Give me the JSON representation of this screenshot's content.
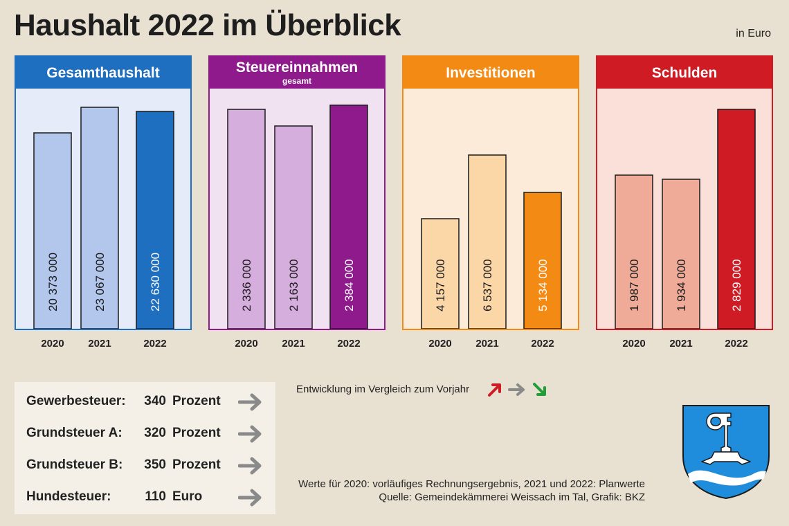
{
  "title": "Haushalt 2022 im Überblick",
  "unit_label": "in Euro",
  "colors": {
    "background": "#e8e0d0",
    "blue": "#1f6fc1",
    "purple": "#8e1a8c",
    "orange": "#f28a14",
    "red": "#cf1b24",
    "arrow_up": "#cf1b24",
    "arrow_same": "#8a8a8a",
    "arrow_down": "#1f9e3a"
  },
  "chart_data": [
    {
      "type": "bar",
      "title": "Gesamthaushalt",
      "subtitle": "",
      "categories": [
        "2020",
        "2021",
        "2022"
      ],
      "values": [
        20373000,
        23067000,
        22630000
      ],
      "value_labels": [
        "20 373 000",
        "23 067 000",
        "22 630 000"
      ],
      "ylim": [
        0,
        25000000
      ],
      "theme": {
        "header": "#1f6fc1",
        "panel_bg": "#e5ebf8",
        "bars": [
          "#b3c6ec",
          "#b3c6ec",
          "#1f6fc1"
        ]
      }
    },
    {
      "type": "bar",
      "title": "Steuereinnahmen",
      "subtitle": "gesamt",
      "categories": [
        "2020",
        "2021",
        "2022"
      ],
      "values": [
        2336000,
        2163000,
        2384000
      ],
      "value_labels": [
        "2 336 000",
        "2 163 000",
        "2 384 000"
      ],
      "ylim": [
        0,
        2560000
      ],
      "theme": {
        "header": "#8e1a8c",
        "panel_bg": "#f1e2f2",
        "bars": [
          "#d6aede",
          "#d6aede",
          "#8e1a8c"
        ]
      }
    },
    {
      "type": "bar",
      "title": "Investitionen",
      "subtitle": "",
      "categories": [
        "2020",
        "2021",
        "2022"
      ],
      "values": [
        4157000,
        6537000,
        5134000
      ],
      "value_labels": [
        "4 157 000",
        "6 537 000",
        "5 134 000"
      ],
      "ylim": [
        0,
        9050000
      ],
      "theme": {
        "header": "#f28a14",
        "panel_bg": "#fcebd8",
        "bars": [
          "#fbd6a6",
          "#fbd6a6",
          "#f28a14"
        ]
      }
    },
    {
      "type": "bar",
      "title": "Schulden",
      "subtitle": "",
      "categories": [
        "2020",
        "2021",
        "2022"
      ],
      "values": [
        1987000,
        1934000,
        2829000
      ],
      "value_labels": [
        "1 987 000",
        "1 934 000",
        "2 829 000"
      ],
      "ylim": [
        0,
        3100000
      ],
      "theme": {
        "header": "#cf1b24",
        "panel_bg": "#fae0d8",
        "bars": [
          "#efab98",
          "#efab98",
          "#cf1b24"
        ]
      }
    }
  ],
  "taxes": [
    {
      "label": "Gewerbesteuer:",
      "value": "340",
      "unit": "Prozent",
      "trend": "same"
    },
    {
      "label": "Grundsteuer A:",
      "value": "320",
      "unit": "Prozent",
      "trend": "same"
    },
    {
      "label": "Grundsteuer B:",
      "value": "350",
      "unit": "Prozent",
      "trend": "same"
    },
    {
      "label": "Hundesteuer:",
      "value": "110",
      "unit": "Euro",
      "trend": "same"
    }
  ],
  "legend": {
    "text": "Entwicklung im Vergleich zum Vorjahr",
    "arrows": [
      "up",
      "same",
      "down"
    ]
  },
  "notes": {
    "line1": "Werte für 2020: vorläufiges Rechnungsergebnis, 2021 und 2022: Planwerte",
    "line2": "Quelle: Gemeindekämmerei Weissach im Tal, Grafik: BKZ"
  },
  "crest": {
    "name": "coat-of-arms-weissach-im-tal"
  }
}
